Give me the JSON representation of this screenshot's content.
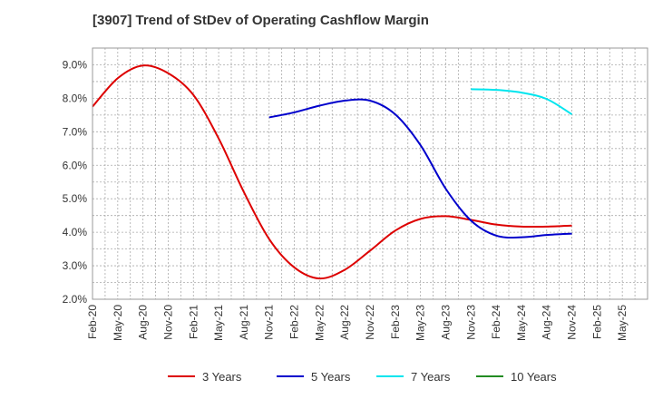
{
  "chart_data": {
    "type": "line",
    "title": "[3907]  Trend of StDev of Operating Cashflow Margin",
    "xlabel": "",
    "ylabel": "",
    "ylim": [
      2.0,
      9.5
    ],
    "y_ticks": [
      "2.0%",
      "3.0%",
      "4.0%",
      "5.0%",
      "6.0%",
      "7.0%",
      "8.0%",
      "9.0%"
    ],
    "y_tick_values": [
      2.0,
      3.0,
      4.0,
      5.0,
      6.0,
      7.0,
      8.0,
      9.0
    ],
    "x_categories": [
      "Feb-20",
      "May-20",
      "Aug-20",
      "Nov-20",
      "Feb-21",
      "May-21",
      "Aug-21",
      "Nov-21",
      "Feb-22",
      "May-22",
      "Aug-22",
      "Nov-22",
      "Feb-23",
      "May-23",
      "Aug-23",
      "Nov-23",
      "Feb-24",
      "May-24",
      "Aug-24",
      "Nov-24",
      "Feb-25",
      "May-25"
    ],
    "grid": true,
    "legend_position": "bottom",
    "series": [
      {
        "name": "3 Years",
        "color": "#dd0000",
        "values": [
          7.75,
          8.6,
          8.98,
          8.75,
          8.1,
          6.8,
          5.2,
          3.8,
          2.95,
          2.62,
          2.88,
          3.45,
          4.05,
          4.4,
          4.48,
          4.37,
          4.23,
          4.17,
          4.17,
          4.2,
          null,
          null
        ]
      },
      {
        "name": "5 Years",
        "color": "#0000cc",
        "values": [
          null,
          null,
          null,
          null,
          null,
          null,
          null,
          7.43,
          7.58,
          7.78,
          7.93,
          7.93,
          7.52,
          6.6,
          5.3,
          4.35,
          3.9,
          3.85,
          3.92,
          3.96,
          null,
          null
        ]
      },
      {
        "name": "7 Years",
        "color": "#00e5ee",
        "values": [
          null,
          null,
          null,
          null,
          null,
          null,
          null,
          null,
          null,
          null,
          null,
          null,
          null,
          null,
          null,
          8.27,
          8.25,
          8.17,
          7.98,
          7.52,
          null,
          null
        ]
      },
      {
        "name": "10 Years",
        "color": "#228b22",
        "values": [
          null,
          null,
          null,
          null,
          null,
          null,
          null,
          null,
          null,
          null,
          null,
          null,
          null,
          null,
          null,
          null,
          null,
          null,
          null,
          null,
          null,
          null
        ]
      }
    ]
  }
}
